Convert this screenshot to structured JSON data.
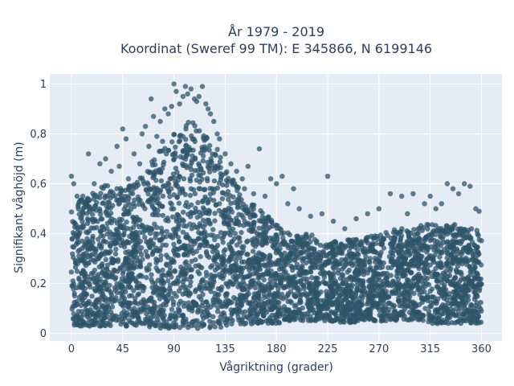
{
  "chart_data": {
    "type": "scatter",
    "title": "År 1979 - 2019",
    "subtitle": "Koordinat (Sweref 99 TM): E 345866, N 6199146",
    "xlabel": "Vågriktning (grader)",
    "ylabel": "Signifikant våghöjd (m)",
    "xlim": [
      -19,
      378
    ],
    "ylim": [
      -0.03,
      1.04
    ],
    "x_ticks": [
      0,
      45,
      90,
      135,
      180,
      225,
      270,
      315,
      360
    ],
    "x_tick_labels": [
      "0",
      "45",
      "90",
      "135",
      "180",
      "225",
      "270",
      "315",
      "360"
    ],
    "y_ticks": [
      0,
      0.2,
      0.4,
      0.6,
      0.8,
      1
    ],
    "y_tick_labels": [
      "0",
      "0,2",
      "0,4",
      "0,6",
      "0,8",
      "1"
    ],
    "grid": true,
    "legend": "none",
    "marker_color": "#2e5468",
    "plot_background": "#e5ecf6",
    "series": [
      {
        "envelope_x": [
          0,
          15,
          30,
          45,
          60,
          75,
          90,
          100,
          105,
          110,
          120,
          130,
          135,
          150,
          165,
          180,
          195,
          210,
          225,
          240,
          255,
          270,
          285,
          300,
          315,
          330,
          345,
          360
        ],
        "envelope_min": [
          0.03,
          0.03,
          0.03,
          0.03,
          0.03,
          0.02,
          0.02,
          0.02,
          0.02,
          0.02,
          0.02,
          0.02,
          0.03,
          0.03,
          0.04,
          0.04,
          0.05,
          0.05,
          0.05,
          0.04,
          0.05,
          0.05,
          0.05,
          0.05,
          0.04,
          0.04,
          0.04,
          0.04
        ],
        "envelope_max": [
          0.52,
          0.55,
          0.6,
          0.58,
          0.62,
          0.72,
          0.8,
          0.85,
          0.87,
          0.85,
          0.8,
          0.74,
          0.68,
          0.56,
          0.5,
          0.44,
          0.4,
          0.4,
          0.36,
          0.38,
          0.38,
          0.4,
          0.42,
          0.42,
          0.45,
          0.45,
          0.42,
          0.42
        ],
        "outliers": [
          [
            0,
            0.63
          ],
          [
            2,
            0.6
          ],
          [
            5,
            0.55
          ],
          [
            10,
            0.55
          ],
          [
            15,
            0.72
          ],
          [
            20,
            0.6
          ],
          [
            25,
            0.68
          ],
          [
            30,
            0.7
          ],
          [
            35,
            0.65
          ],
          [
            40,
            0.75
          ],
          [
            42,
            0.67
          ],
          [
            45,
            0.82
          ],
          [
            48,
            0.78
          ],
          [
            50,
            0.62
          ],
          [
            55,
            0.72
          ],
          [
            60,
            0.68
          ],
          [
            62,
            0.8
          ],
          [
            65,
            0.83
          ],
          [
            68,
            0.75
          ],
          [
            70,
            0.94
          ],
          [
            72,
            0.87
          ],
          [
            75,
            0.79
          ],
          [
            78,
            0.85
          ],
          [
            80,
            0.77
          ],
          [
            82,
            0.9
          ],
          [
            85,
            0.88
          ],
          [
            88,
            0.91
          ],
          [
            90,
            1.0
          ],
          [
            92,
            0.97
          ],
          [
            95,
            0.92
          ],
          [
            98,
            0.95
          ],
          [
            100,
            0.99
          ],
          [
            102,
            0.96
          ],
          [
            105,
            0.98
          ],
          [
            108,
            0.94
          ],
          [
            110,
            0.93
          ],
          [
            112,
            0.95
          ],
          [
            115,
            0.99
          ],
          [
            118,
            0.92
          ],
          [
            120,
            0.9
          ],
          [
            122,
            0.88
          ],
          [
            125,
            0.85
          ],
          [
            128,
            0.8
          ],
          [
            130,
            0.78
          ],
          [
            135,
            0.72
          ],
          [
            140,
            0.68
          ],
          [
            145,
            0.65
          ],
          [
            150,
            0.62
          ],
          [
            152,
            0.58
          ],
          [
            155,
            0.67
          ],
          [
            160,
            0.56
          ],
          [
            165,
            0.74
          ],
          [
            170,
            0.55
          ],
          [
            175,
            0.62
          ],
          [
            180,
            0.6
          ],
          [
            185,
            0.63
          ],
          [
            190,
            0.52
          ],
          [
            195,
            0.58
          ],
          [
            200,
            0.5
          ],
          [
            210,
            0.47
          ],
          [
            220,
            0.48
          ],
          [
            225,
            0.63
          ],
          [
            230,
            0.45
          ],
          [
            240,
            0.42
          ],
          [
            250,
            0.46
          ],
          [
            260,
            0.48
          ],
          [
            270,
            0.5
          ],
          [
            280,
            0.56
          ],
          [
            290,
            0.55
          ],
          [
            295,
            0.48
          ],
          [
            300,
            0.56
          ],
          [
            310,
            0.52
          ],
          [
            315,
            0.55
          ],
          [
            320,
            0.5
          ],
          [
            325,
            0.52
          ],
          [
            330,
            0.6
          ],
          [
            335,
            0.58
          ],
          [
            340,
            0.56
          ],
          [
            345,
            0.6
          ],
          [
            350,
            0.59
          ],
          [
            355,
            0.5
          ],
          [
            358,
            0.49
          ]
        ]
      }
    ]
  }
}
